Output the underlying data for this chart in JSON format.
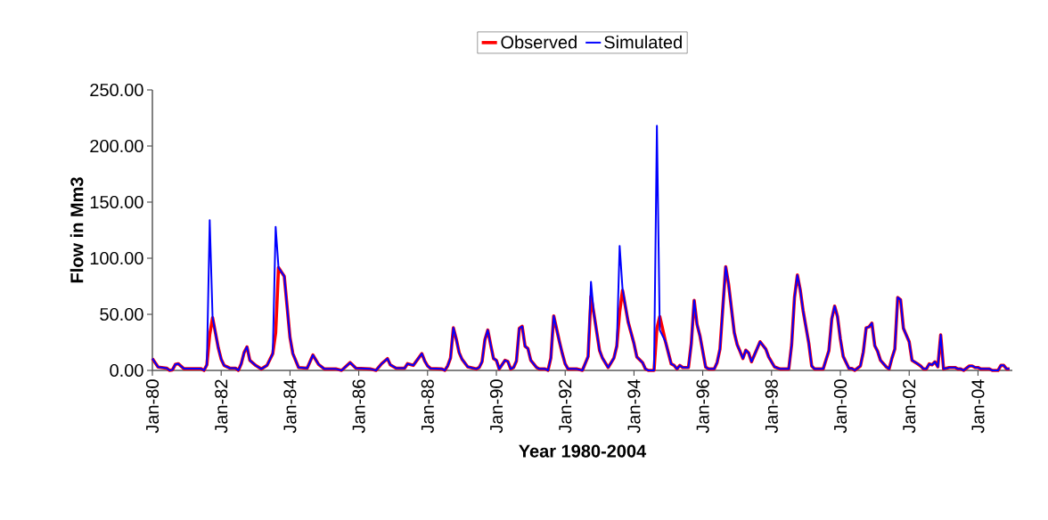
{
  "chart_data": {
    "type": "line",
    "xlabel": "Year 1980-2004",
    "ylabel": "Flow in Mm3",
    "legend": "top",
    "xlim": [
      "1980-01",
      "2005-01"
    ],
    "xticks": [
      {
        "value": "1980-01",
        "label": "Jan-80"
      },
      {
        "value": "1982-01",
        "label": "Jan-82"
      },
      {
        "value": "1984-01",
        "label": "Jan-84"
      },
      {
        "value": "1986-01",
        "label": "Jan-86"
      },
      {
        "value": "1988-01",
        "label": "Jan-88"
      },
      {
        "value": "1990-01",
        "label": "Jan-90"
      },
      {
        "value": "1992-01",
        "label": "Jan-92"
      },
      {
        "value": "1994-01",
        "label": "Jan-94"
      },
      {
        "value": "1996-01",
        "label": "Jan-96"
      },
      {
        "value": "1998-01",
        "label": "Jan-98"
      },
      {
        "value": "2000-01",
        "label": "Jan-00"
      },
      {
        "value": "2002-01",
        "label": "Jan-02"
      },
      {
        "value": "2004-01",
        "label": "Jan-04"
      }
    ],
    "ylim": [
      0,
      250
    ],
    "yticks": [
      {
        "value": 0,
        "label": "0.00"
      },
      {
        "value": 50,
        "label": "50.00"
      },
      {
        "value": 100,
        "label": "100.00"
      },
      {
        "value": 150,
        "label": "150.00"
      },
      {
        "value": 200,
        "label": "200.00"
      },
      {
        "value": 250,
        "label": "250.00"
      }
    ],
    "x": [
      "1980-01",
      "1980-03",
      "1980-06",
      "1980-07",
      "1980-08",
      "1980-09",
      "1980-10",
      "1980-12",
      "1981-06",
      "1981-07",
      "1981-08",
      "1981-09",
      "1981-10",
      "1981-11",
      "1981-12",
      "1982-01",
      "1982-02",
      "1982-04",
      "1982-06",
      "1982-07",
      "1982-08",
      "1982-09",
      "1982-10",
      "1982-11",
      "1983-01",
      "1983-03",
      "1983-05",
      "1983-07",
      "1983-08",
      "1983-09",
      "1983-11",
      "1984-01",
      "1984-02",
      "1984-04",
      "1984-07",
      "1984-09",
      "1984-11",
      "1985-01",
      "1985-05",
      "1985-07",
      "1985-10",
      "1985-12",
      "1986-05",
      "1986-07",
      "1986-09",
      "1986-11",
      "1986-12",
      "1987-02",
      "1987-05",
      "1987-06",
      "1987-08",
      "1987-11",
      "1987-12",
      "1988-01",
      "1988-02",
      "1988-06",
      "1988-07",
      "1988-08",
      "1988-09",
      "1988-10",
      "1988-11",
      "1988-12",
      "1989-01",
      "1989-03",
      "1989-04",
      "1989-06",
      "1989-07",
      "1989-08",
      "1989-09",
      "1989-10",
      "1989-11",
      "1989-12",
      "1990-01",
      "1990-02",
      "1990-04",
      "1990-05",
      "1990-06",
      "1990-07",
      "1990-08",
      "1990-09",
      "1990-10",
      "1990-11",
      "1990-12",
      "1991-01",
      "1991-03",
      "1991-04",
      "1991-06",
      "1991-07",
      "1991-08",
      "1991-09",
      "1991-11",
      "1991-12",
      "1992-01",
      "1992-02",
      "1992-05",
      "1992-07",
      "1992-09",
      "1992-10",
      "1992-11",
      "1993-01",
      "1993-02",
      "1993-04",
      "1993-06",
      "1993-07",
      "1993-08",
      "1993-09",
      "1993-11",
      "1994-01",
      "1994-02",
      "1994-04",
      "1994-05",
      "1994-06",
      "1994-08",
      "1994-09",
      "1994-10",
      "1994-12",
      "1995-02",
      "1995-03",
      "1995-04",
      "1995-05",
      "1995-06",
      "1995-08",
      "1995-09",
      "1995-10",
      "1995-11",
      "1995-12",
      "1996-02",
      "1996-03",
      "1996-05",
      "1996-06",
      "1996-07",
      "1996-08",
      "1996-09",
      "1996-10",
      "1996-12",
      "1997-01",
      "1997-02",
      "1997-03",
      "1997-04",
      "1997-05",
      "1997-06",
      "1997-07",
      "1997-09",
      "1997-11",
      "1997-12",
      "1998-02",
      "1998-04",
      "1998-07",
      "1998-08",
      "1998-09",
      "1998-10",
      "1998-11",
      "1998-12",
      "1999-02",
      "1999-03",
      "1999-04",
      "1999-07",
      "1999-09",
      "1999-10",
      "1999-11",
      "1999-12",
      "2000-01",
      "2000-02",
      "2000-04",
      "2000-05",
      "2000-06",
      "2000-08",
      "2000-09",
      "2000-10",
      "2000-11",
      "2000-12",
      "2001-01",
      "2001-02",
      "2001-03",
      "2001-05",
      "2001-06",
      "2001-07",
      "2001-08",
      "2001-09",
      "2001-10",
      "2001-11",
      "2002-01",
      "2002-02",
      "2002-04",
      "2002-05",
      "2002-06",
      "2002-07",
      "2002-08",
      "2002-09",
      "2002-10",
      "2002-11",
      "2002-12",
      "2003-01",
      "2003-03",
      "2003-05",
      "2003-06",
      "2003-07",
      "2003-08",
      "2003-10",
      "2003-11",
      "2003-12",
      "2004-01",
      "2004-02",
      "2004-05",
      "2004-06",
      "2004-08",
      "2004-09",
      "2004-10",
      "2004-11",
      "2004-12"
    ],
    "series": [
      {
        "name": "Observed",
        "color": "#ff0000",
        "values": [
          10.6,
          3,
          2,
          0,
          0.5,
          5.3,
          6,
          1.5,
          1.5,
          0,
          5,
          32,
          47,
          33.5,
          20,
          10,
          4.5,
          2,
          2,
          0,
          6,
          16,
          21,
          9,
          4.5,
          1.3,
          4.5,
          15,
          33.5,
          91.6,
          84,
          29.5,
          15,
          2.6,
          2,
          13.7,
          5.3,
          1.3,
          1.3,
          0,
          7,
          2,
          1.3,
          0,
          6,
          10.5,
          5,
          2,
          2,
          6,
          4.5,
          15,
          8.4,
          4,
          1.8,
          1.3,
          0,
          4,
          11,
          38,
          28,
          16,
          10,
          3.2,
          2.6,
          1.3,
          2.6,
          7.7,
          27.4,
          36,
          23,
          10.6,
          9,
          1.3,
          9,
          8,
          1.3,
          2.6,
          8.4,
          37.5,
          39.3,
          21.6,
          19.5,
          9,
          2.6,
          1.3,
          1.3,
          0,
          11,
          48.6,
          25.6,
          15,
          5.8,
          1.3,
          1.3,
          0,
          12.4,
          66,
          51,
          17.7,
          11,
          2.6,
          11,
          21.6,
          52,
          71.3,
          42.8,
          24,
          12,
          7,
          1.3,
          0,
          0,
          37.5,
          48,
          25.6,
          5.8,
          4.5,
          1.3,
          4.5,
          2.6,
          2.6,
          24,
          62.5,
          41,
          31,
          3,
          1.3,
          1.3,
          7,
          19,
          56,
          92.4,
          77,
          33.5,
          23,
          17,
          10.6,
          18,
          15.6,
          7.7,
          13.7,
          25.6,
          19,
          12,
          3.2,
          1.3,
          1.3,
          23,
          65,
          85,
          71.8,
          53.3,
          24,
          4,
          1.3,
          1.3,
          17.7,
          46,
          57.3,
          48,
          28,
          12.4,
          1.8,
          1.8,
          0,
          4,
          16.4,
          38,
          38.8,
          42.2,
          22,
          17,
          9,
          3.2,
          1.3,
          11,
          19,
          65,
          63,
          37.5,
          25.6,
          9,
          5.8,
          4,
          1.3,
          1.3,
          5.8,
          5,
          7.7,
          3.2,
          31.7,
          1.3,
          2.6,
          2.6,
          1.3,
          1.3,
          0,
          4,
          4,
          2.6,
          2.6,
          1.3,
          1.3,
          0,
          0,
          4.5,
          4.5,
          1.3,
          1.3
        ]
      },
      {
        "name": "Simulated",
        "color": "#0000ff",
        "values": [
          10.6,
          3,
          2,
          0,
          0.5,
          5.3,
          6,
          1.5,
          1.5,
          0,
          5,
          134,
          47,
          33.5,
          20,
          10,
          4.5,
          2,
          2,
          0,
          6,
          16,
          21,
          9,
          4.5,
          1.3,
          4.5,
          15,
          128,
          91.6,
          84,
          29.5,
          15,
          2.6,
          2,
          13.7,
          5.3,
          1.3,
          1.3,
          0,
          7,
          2,
          1.3,
          0,
          6,
          10.5,
          5,
          2,
          2,
          6,
          4.5,
          15,
          8.4,
          4,
          1.8,
          1.3,
          0,
          4,
          11,
          38,
          28,
          16,
          10,
          3.2,
          2.6,
          1.3,
          2.6,
          7.7,
          27.4,
          36,
          23,
          10.6,
          9,
          1.3,
          9,
          8,
          1.3,
          2.6,
          8.4,
          37.5,
          39.3,
          21.6,
          19.5,
          9,
          2.6,
          1.3,
          1.3,
          0,
          11,
          48.6,
          25.6,
          15,
          5.8,
          1.3,
          1.3,
          0,
          12.4,
          79,
          51,
          17.7,
          11,
          2.6,
          11,
          21.6,
          111,
          73,
          42.8,
          24,
          12,
          7,
          1.3,
          0,
          0,
          218,
          36,
          25.6,
          5.8,
          4.5,
          1.3,
          4.5,
          2.6,
          2.6,
          24,
          62.5,
          41,
          31,
          3,
          1.3,
          1.3,
          7,
          19,
          56,
          92.4,
          77,
          33.5,
          23,
          17,
          10.6,
          18,
          15.6,
          7.7,
          13.7,
          25.6,
          19,
          12,
          3.2,
          1.3,
          1.3,
          23,
          65,
          85,
          71.8,
          53.3,
          24,
          4,
          1.3,
          1.3,
          17.7,
          46,
          57.3,
          48,
          28,
          12.4,
          1.8,
          1.8,
          0,
          4,
          16.4,
          38,
          38.8,
          42.2,
          22,
          17,
          9,
          3.2,
          1.3,
          11,
          19,
          65,
          63,
          37.5,
          25.6,
          9,
          5.8,
          4,
          1.3,
          1.3,
          5.8,
          5,
          7.7,
          3.2,
          31.7,
          1.3,
          2.6,
          2.6,
          1.3,
          1.3,
          0,
          4,
          4,
          2.6,
          2.6,
          1.3,
          1.3,
          0,
          0,
          4.5,
          4.5,
          1.3,
          1.3
        ]
      }
    ]
  }
}
